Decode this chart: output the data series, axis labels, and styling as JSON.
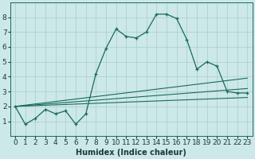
{
  "xlabel": "Humidex (Indice chaleur)",
  "ylabel": "",
  "bg_color": "#cce8e8",
  "grid_color": "#aacccc",
  "line_color": "#1a6b5a",
  "x_values": [
    0,
    1,
    2,
    3,
    4,
    5,
    6,
    7,
    8,
    9,
    10,
    11,
    12,
    13,
    14,
    15,
    16,
    17,
    18,
    19,
    20,
    21,
    22,
    23
  ],
  "y_main": [
    2.0,
    0.8,
    1.2,
    1.8,
    1.5,
    1.7,
    0.8,
    1.5,
    4.2,
    5.9,
    7.2,
    6.7,
    6.6,
    7.0,
    8.2,
    8.2,
    7.9,
    6.5,
    4.5,
    5.0,
    4.7,
    3.0,
    2.9,
    2.9
  ],
  "trend_lines": [
    {
      "x0": 0,
      "y0": 2.0,
      "x1": 23,
      "y1": 2.6
    },
    {
      "x0": 0,
      "y0": 2.0,
      "x1": 23,
      "y1": 3.2
    },
    {
      "x0": 0,
      "y0": 2.0,
      "x1": 23,
      "y1": 3.9
    }
  ],
  "xlim": [
    -0.5,
    23.5
  ],
  "ylim": [
    0,
    9
  ],
  "yticks": [
    1,
    2,
    3,
    4,
    5,
    6,
    7,
    8
  ],
  "xticks": [
    0,
    1,
    2,
    3,
    4,
    5,
    6,
    7,
    8,
    9,
    10,
    11,
    12,
    13,
    14,
    15,
    16,
    17,
    18,
    19,
    20,
    21,
    22,
    23
  ],
  "xlabel_fontsize": 7,
  "tick_fontsize": 6.5
}
